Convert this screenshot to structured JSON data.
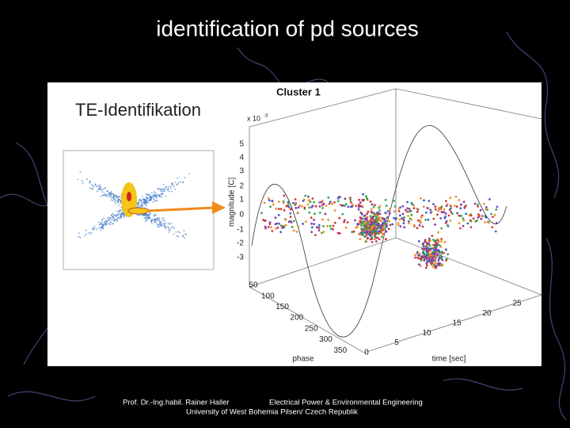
{
  "slide": {
    "title": "identification of pd sources",
    "figure": {
      "left_title": "TE-Identifikation",
      "plot_title": "Cluster 1",
      "scale_note": "x 10",
      "scale_exponent": "-3",
      "y_axis_label": "magnitude [C]",
      "phase_axis_label": "phase",
      "time_axis_label": "time [sec]",
      "magnitude_ticks": [
        5,
        4,
        3,
        2,
        1,
        0,
        -1,
        -2,
        -3
      ],
      "phase_ticks": [
        50,
        100,
        150,
        200,
        250,
        300,
        350
      ],
      "time_ticks": [
        0,
        5,
        10,
        15,
        20,
        25
      ]
    },
    "footer": {
      "author": "Prof. Dr.-Ing.habil. Rainer Haller",
      "department": "Electrical Power & Environmental Engineering",
      "university": "University of West Bohemia Pilsen/ Czech Republik"
    }
  }
}
